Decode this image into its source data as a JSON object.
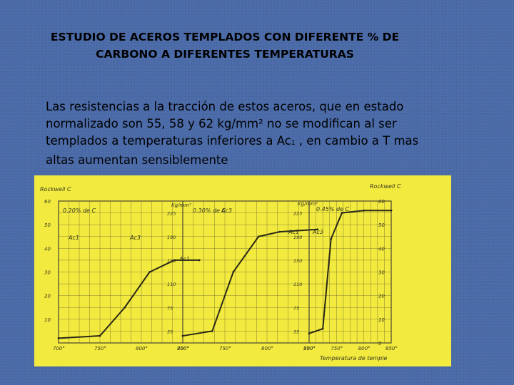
{
  "slide": {
    "title_line1": "ESTUDIO DE ACEROS TEMPLADOS CON DIFERENTE % DE",
    "title_line2": "CARBONO  A DIFERENTES TEMPERATURAS",
    "body_line1": "Las resistencias a la tracción de estos aceros, que en estado",
    "body_line2": "normalizado son 55, 58 y 62 kg/mm² no se modifican al ser",
    "body_line3_prefix": "templados a temperaturas inferiores a Ac",
    "body_line3_sub": "1",
    "body_line3_suffix": " , en cambio a T mas",
    "body_line4": "altas aumentan sensiblemente"
  },
  "chart_data": {
    "type": "line",
    "left_axis": {
      "label": "Rockwell C",
      "ticks": [
        "60",
        "50",
        "40",
        "30",
        "20",
        "10"
      ]
    },
    "right_axis": {
      "label": "Rockwell C",
      "ticks": [
        "60",
        "50",
        "40",
        "30",
        "20",
        "10",
        "0"
      ]
    },
    "kg_axis": {
      "label": "Kg/mm²",
      "ticks": [
        "225",
        "190",
        "150",
        "110",
        "75",
        "35"
      ]
    },
    "x_ticks": [
      "700°",
      "750°",
      "800°",
      "850°",
      "700°",
      "750°",
      "800°",
      "850°",
      "700°",
      "750°",
      "800°",
      "850°"
    ],
    "x_label": "Temperatura de temple",
    "panels": [
      {
        "label": "0.20% de C",
        "ac1": "Ac1",
        "ac3": "Ac3",
        "points": [
          [
            700,
            2
          ],
          [
            750,
            3
          ],
          [
            780,
            15
          ],
          [
            810,
            30
          ],
          [
            840,
            35
          ],
          [
            870,
            35
          ]
        ]
      },
      {
        "label": "0.30% de C",
        "ac1": "Ac1",
        "ac3": "Ac3",
        "points": [
          [
            700,
            3
          ],
          [
            735,
            5
          ],
          [
            760,
            30
          ],
          [
            790,
            45
          ],
          [
            815,
            47
          ],
          [
            860,
            48
          ]
        ]
      },
      {
        "label": "0.45% de C",
        "ac1": "Ac1",
        "ac3": "Ac3",
        "points": [
          [
            700,
            4
          ],
          [
            725,
            6
          ],
          [
            740,
            44
          ],
          [
            760,
            55
          ],
          [
            800,
            56
          ],
          [
            850,
            56
          ]
        ]
      }
    ]
  }
}
